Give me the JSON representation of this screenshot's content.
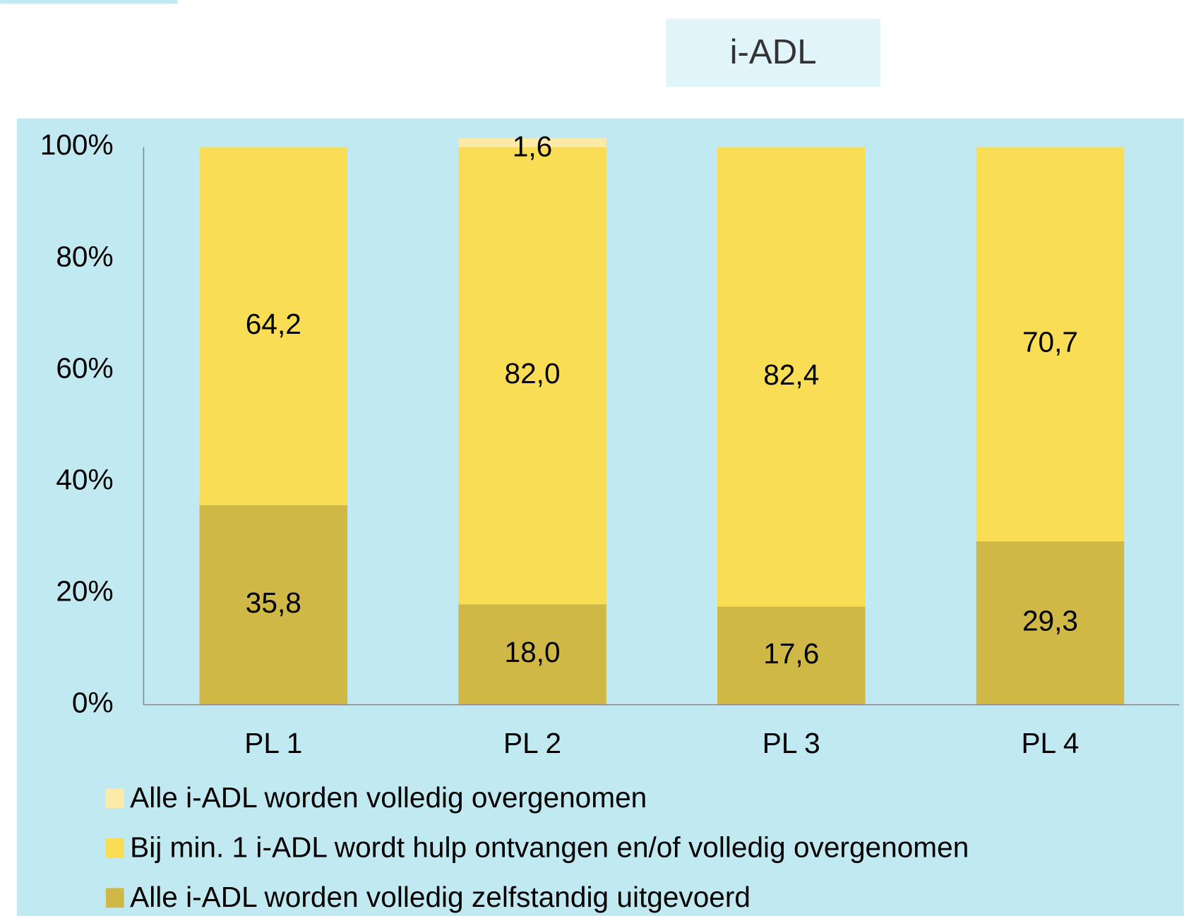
{
  "chart_data": {
    "type": "stacked_bar",
    "title": "i-ADL",
    "categories": [
      "PL 1",
      "PL 2",
      "PL 3",
      "PL 4"
    ],
    "series": [
      {
        "name": "Alle i-ADL  worden volledig zelfstandig uitgevoerd",
        "color": "#cfb845",
        "values": [
          35.8,
          18.0,
          17.6,
          29.3
        ],
        "value_labels": [
          "35,8",
          "18,0",
          "17,6",
          "29,3"
        ]
      },
      {
        "name": "Bij min. 1 i-ADL wordt hulp ontvangen en/of volledig overgenomen",
        "color": "#f9de55",
        "values": [
          64.2,
          82.0,
          82.4,
          70.7
        ],
        "value_labels": [
          "64,2",
          "82,0",
          "82,4",
          "70,7"
        ]
      },
      {
        "name": "Alle i-ADL worden volledig overgenomen",
        "color": "#fde9a8",
        "values": [
          null,
          1.6,
          null,
          null
        ],
        "value_labels": [
          null,
          "1,6",
          null,
          null
        ]
      }
    ],
    "ylim": [
      0,
      100
    ],
    "yticks": [
      {
        "value": 0,
        "label": "0%"
      },
      {
        "value": 20,
        "label": "20%"
      },
      {
        "value": 40,
        "label": "40%"
      },
      {
        "value": 60,
        "label": "60%"
      },
      {
        "value": 80,
        "label": "80%"
      },
      {
        "value": 100,
        "label": "100%"
      }
    ]
  }
}
